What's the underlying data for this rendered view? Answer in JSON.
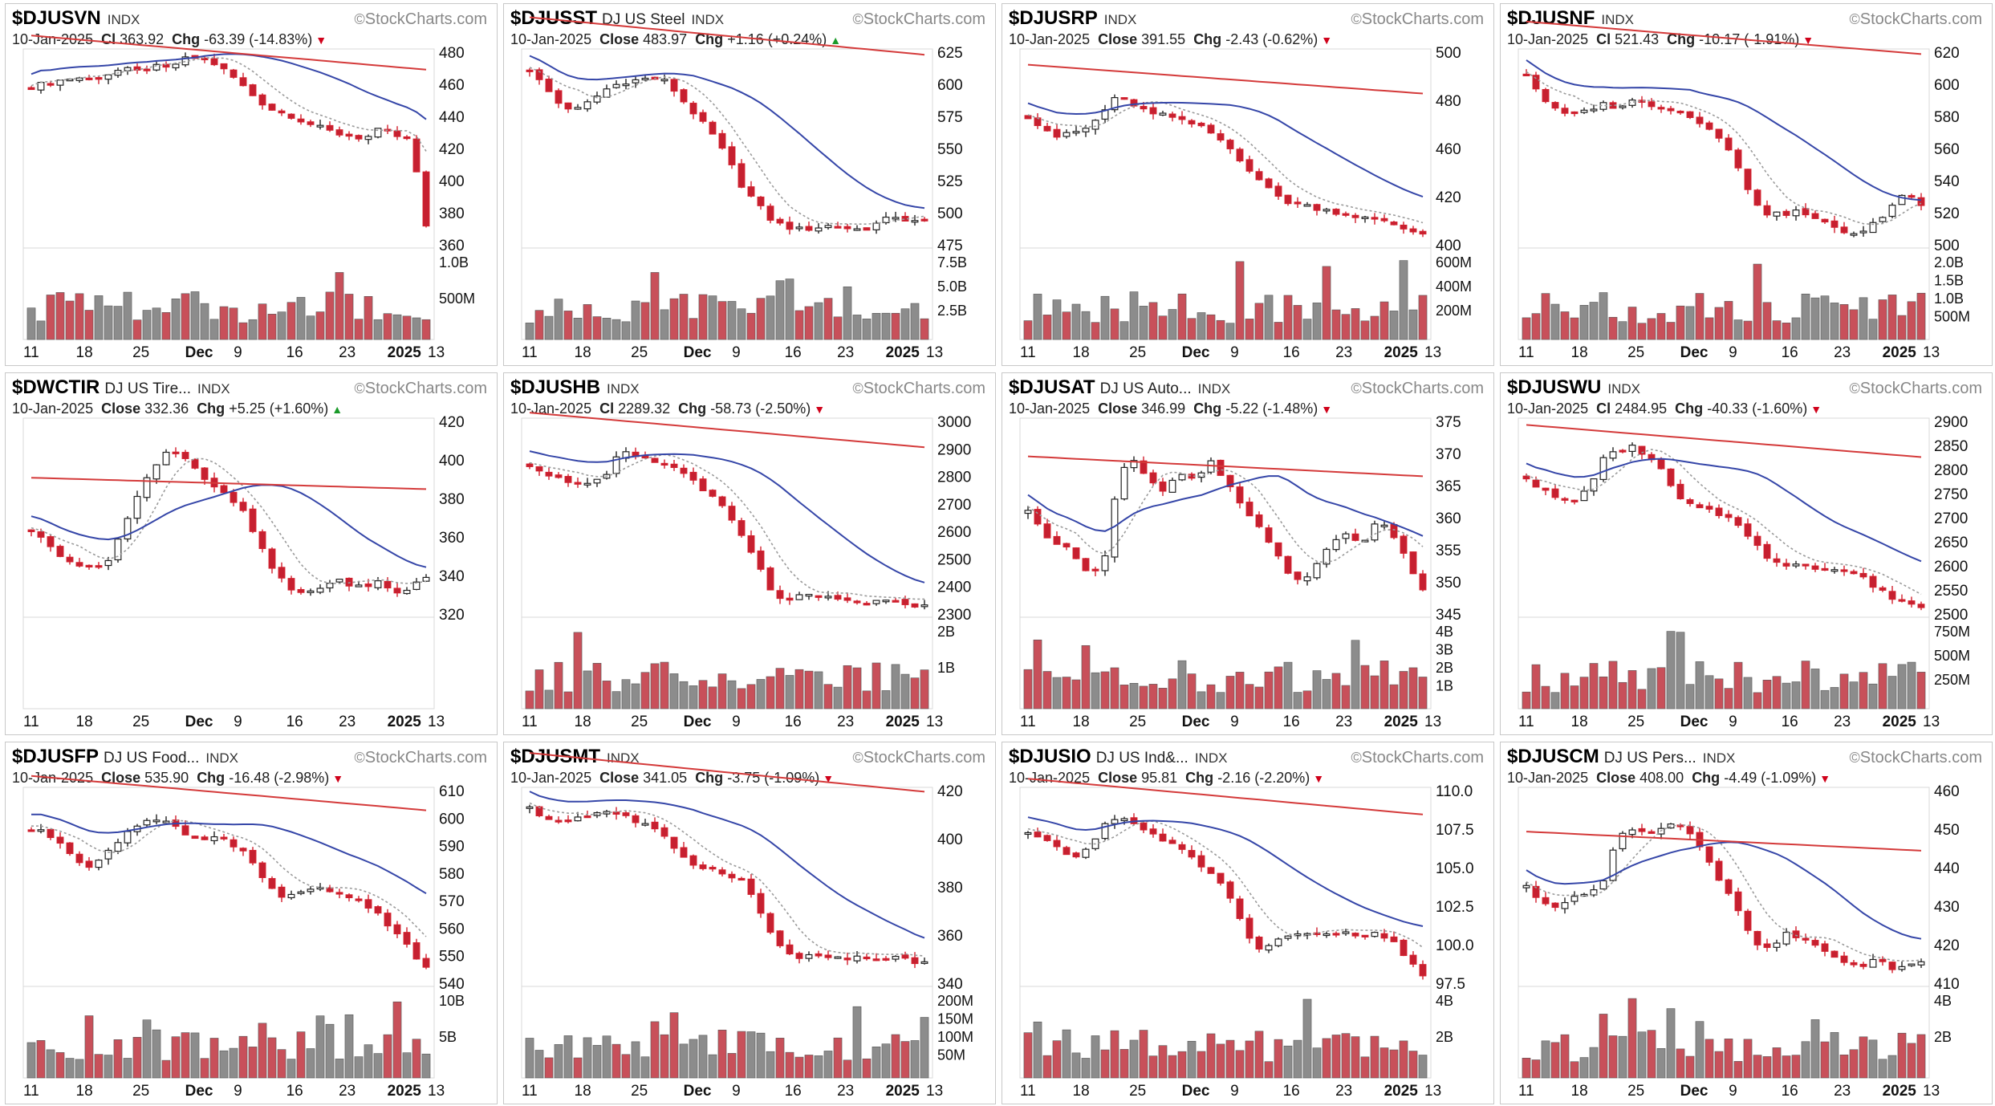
{
  "colors": {
    "up": "#c9c9c9",
    "down": "#d2202e",
    "down_fill": "#c62030",
    "vol_red": "#c8505a",
    "vol_gray": "#8c8c8c",
    "ma_red": "#d43a3a",
    "ma_blue": "#3546a8",
    "ma_dotted": "#9a9a9a",
    "panel_border": "#c8c8c8"
  },
  "brand": "StockCharts.com",
  "date": "10-Jan-2025",
  "x_ticks": [
    "11",
    "18",
    "25",
    "Dec",
    "9",
    "16",
    "23",
    "2025",
    "13"
  ],
  "charts": [
    {
      "symbol": "$DJUSVN",
      "name": "",
      "exchange": "INDX",
      "price_label": "Cl",
      "close": "363.92",
      "change": "-63.39 (-14.83%)",
      "direction": "down",
      "y_ticks": [
        "480",
        "460",
        "440",
        "420",
        "400",
        "380",
        "360"
      ],
      "vol_ticks": [
        "1.0B",
        "500M"
      ],
      "chart_data": {
        "type": "candlestick",
        "trend_series": [
          465,
          468,
          470,
          472,
          470,
          474,
          478,
          476,
          480,
          478,
          485,
          486,
          482,
          475,
          465,
          455,
          448,
          445,
          440,
          436,
          432,
          430,
          428,
          435,
          430,
          427,
          364
        ],
        "ylim": [
          352,
          490
        ]
      }
    },
    {
      "symbol": "$DJUSST",
      "name": "DJ US Steel",
      "exchange": "INDX",
      "price_label": "Close",
      "close": "483.97",
      "change": "+1.16 (+0.24%)",
      "direction": "up",
      "y_ticks": [
        "625",
        "600",
        "575",
        "550",
        "525",
        "500",
        "475"
      ],
      "vol_ticks": [
        "7.5B",
        "5.0B",
        "2.5B"
      ],
      "chart_data": {
        "type": "candlestick",
        "trend_series": [
          615,
          600,
          585,
          580,
          588,
          598,
          604,
          606,
          608,
          605,
          590,
          575,
          560,
          540,
          515,
          500,
          485,
          480,
          478,
          480,
          482,
          479,
          478,
          484,
          490,
          485,
          484
        ],
        "ylim": [
          465,
          630
        ]
      }
    },
    {
      "symbol": "$DJUSRP",
      "name": "",
      "exchange": "INDX",
      "price_label": "Close",
      "close": "391.55",
      "change": "-2.43 (-0.62%)",
      "direction": "down",
      "y_ticks": [
        "500",
        "480",
        "460",
        "420",
        "400"
      ],
      "vol_ticks": [
        "600M",
        "400M",
        "200M"
      ],
      "chart_data": {
        "type": "candlestick",
        "trend_series": [
          465,
          458,
          452,
          455,
          458,
          468,
          480,
          470,
          468,
          466,
          462,
          460,
          455,
          448,
          438,
          428,
          418,
          412,
          410,
          408,
          406,
          404,
          402,
          400,
          398,
          394,
          392
        ],
        "ylim": [
          385,
          505
        ]
      }
    },
    {
      "symbol": "$DJUSNF",
      "name": "",
      "exchange": "INDX",
      "price_label": "Cl",
      "close": "521.43",
      "change": "-10.17 (-1.91%)",
      "direction": "down",
      "y_ticks": [
        "620",
        "600",
        "580",
        "560",
        "540",
        "520",
        "500"
      ],
      "vol_ticks": [
        "2.0B",
        "1.5B",
        "1.0B",
        "500M"
      ],
      "chart_data": {
        "type": "candlestick",
        "trend_series": [
          610,
          595,
          585,
          582,
          586,
          590,
          588,
          592,
          590,
          588,
          585,
          580,
          575,
          565,
          545,
          525,
          515,
          516,
          518,
          512,
          508,
          504,
          502,
          510,
          520,
          532,
          521
        ],
        "ylim": [
          495,
          625
        ]
      }
    },
    {
      "symbol": "$DWCTIR",
      "name": "DJ US Tire...",
      "exchange": "INDX",
      "price_label": "Close",
      "close": "332.36",
      "change": "+5.25 (+1.60%)",
      "direction": "up",
      "y_ticks": [
        "420",
        "400",
        "380",
        "360",
        "340",
        "320"
      ],
      "vol_ticks": [],
      "chart_data": {
        "type": "candlestick",
        "trend_series": [
          360,
          352,
          345,
          340,
          336,
          342,
          360,
          380,
          398,
          408,
          405,
          395,
          385,
          380,
          370,
          352,
          335,
          325,
          322,
          326,
          330,
          328,
          325,
          330,
          322,
          326,
          332
        ],
        "ylim": [
          310,
          425
        ]
      }
    },
    {
      "symbol": "$DJUSHB",
      "name": "",
      "exchange": "INDX",
      "price_label": "Cl",
      "close": "2289.32",
      "change": "-58.73 (-2.50%)",
      "direction": "down",
      "y_ticks": [
        "3000",
        "2900",
        "2800",
        "2700",
        "2600",
        "2500",
        "2400",
        "2300"
      ],
      "vol_ticks": [
        "2B",
        "1B"
      ],
      "chart_data": {
        "type": "candlestick",
        "trend_series": [
          2850,
          2820,
          2790,
          2780,
          2770,
          2800,
          2900,
          2880,
          2860,
          2850,
          2820,
          2780,
          2720,
          2660,
          2560,
          2460,
          2330,
          2320,
          2330,
          2325,
          2320,
          2310,
          2300,
          2310,
          2305,
          2300,
          2289
        ],
        "ylim": [
          2260,
          3020
        ]
      }
    },
    {
      "symbol": "$DJUSAT",
      "name": "DJ US Auto...",
      "exchange": "INDX",
      "price_label": "Close",
      "close": "346.99",
      "change": "-5.22 (-1.48%)",
      "direction": "down",
      "y_ticks": [
        "375",
        "370",
        "365",
        "360",
        "355",
        "350",
        "345"
      ],
      "vol_ticks": [
        "4B",
        "3B",
        "2B",
        "1B"
      ],
      "chart_data": {
        "type": "candlestick",
        "trend_series": [
          362,
          358,
          356,
          354,
          350,
          352,
          370,
          372,
          368,
          366,
          370,
          368,
          372,
          368,
          364,
          360,
          356,
          350,
          348,
          352,
          356,
          358,
          356,
          360,
          358,
          352,
          347
        ],
        "ylim": [
          342,
          380
        ]
      }
    },
    {
      "symbol": "$DJUSWU",
      "name": "",
      "exchange": "INDX",
      "price_label": "Cl",
      "close": "2484.95",
      "change": "-40.33 (-1.60%)",
      "direction": "down",
      "y_ticks": [
        "2900",
        "2850",
        "2800",
        "2750",
        "2700",
        "2650",
        "2600",
        "2550",
        "2500"
      ],
      "vol_ticks": [
        "750M",
        "500M",
        "250M"
      ],
      "chart_data": {
        "type": "candlestick",
        "trend_series": [
          2790,
          2760,
          2740,
          2730,
          2760,
          2830,
          2850,
          2860,
          2840,
          2800,
          2740,
          2720,
          2710,
          2700,
          2680,
          2640,
          2590,
          2585,
          2590,
          2580,
          2575,
          2570,
          2560,
          2530,
          2510,
          2500,
          2485
        ],
        "ylim": [
          2470,
          2920
        ]
      }
    },
    {
      "symbol": "$DJUSFP",
      "name": "DJ US Food...",
      "exchange": "INDX",
      "price_label": "Close",
      "close": "535.90",
      "change": "-16.48 (-2.98%)",
      "direction": "down",
      "y_ticks": [
        "610",
        "600",
        "590",
        "580",
        "570",
        "560",
        "550",
        "540"
      ],
      "vol_ticks": [
        "10B",
        "5B"
      ],
      "chart_data": {
        "type": "candlestick",
        "trend_series": [
          598,
          596,
          592,
          585,
          580,
          588,
          595,
          600,
          603,
          602,
          596,
          592,
          594,
          592,
          588,
          578,
          570,
          568,
          570,
          572,
          570,
          568,
          565,
          560,
          552,
          545,
          536
        ],
        "ylim": [
          530,
          615
        ]
      }
    },
    {
      "symbol": "$DJUSMT",
      "name": "",
      "exchange": "INDX",
      "price_label": "Close",
      "close": "341.05",
      "change": "-3.75 (-1.09%)",
      "direction": "down",
      "y_ticks": [
        "420",
        "400",
        "380",
        "360",
        "340"
      ],
      "vol_ticks": [
        "200M",
        "150M",
        "100M",
        "50M"
      ],
      "chart_data": {
        "type": "candlestick",
        "trend_series": [
          425,
          420,
          418,
          420,
          422,
          424,
          422,
          418,
          415,
          408,
          400,
          394,
          392,
          390,
          386,
          372,
          355,
          346,
          344,
          345,
          344,
          343,
          344,
          342,
          345,
          342,
          341
        ],
        "ylim": [
          330,
          435
        ]
      }
    },
    {
      "symbol": "$DJUSIO",
      "name": "DJ US Ind&...",
      "exchange": "INDX",
      "price_label": "Close",
      "close": "95.81",
      "change": "-2.16 (-2.20%)",
      "direction": "down",
      "y_ticks": [
        "110.0",
        "107.5",
        "105.0",
        "102.5",
        "100.0",
        "97.5"
      ],
      "vol_ticks": [
        "4B",
        "2B"
      ],
      "chart_data": {
        "type": "candlestick",
        "trend_series": [
          107.8,
          107.2,
          106.5,
          105.8,
          106.5,
          108.5,
          109.5,
          108.5,
          107.8,
          107.2,
          106.5,
          105.5,
          104.5,
          103.0,
          100.5,
          97.8,
          98.2,
          99.0,
          99.5,
          99.2,
          99.0,
          99.3,
          99.0,
          99.2,
          98.5,
          97.0,
          95.8
        ],
        "ylim": [
          95.0,
          111.5
        ]
      }
    },
    {
      "symbol": "$DJUSCM",
      "name": "DJ US Pers...",
      "exchange": "INDX",
      "price_label": "Close",
      "close": "408.00",
      "change": "-4.49 (-1.09%)",
      "direction": "down",
      "y_ticks": [
        "460",
        "450",
        "440",
        "430",
        "420",
        "410"
      ],
      "vol_ticks": [
        "4B",
        "2B"
      ],
      "chart_data": {
        "type": "candlestick",
        "trend_series": [
          432,
          428,
          425,
          428,
          430,
          432,
          448,
          450,
          448,
          450,
          452,
          447,
          440,
          432,
          425,
          415,
          412,
          418,
          416,
          414,
          410,
          408,
          407,
          410,
          406,
          408,
          408
        ],
        "ylim": [
          402,
          462
        ]
      }
    }
  ]
}
